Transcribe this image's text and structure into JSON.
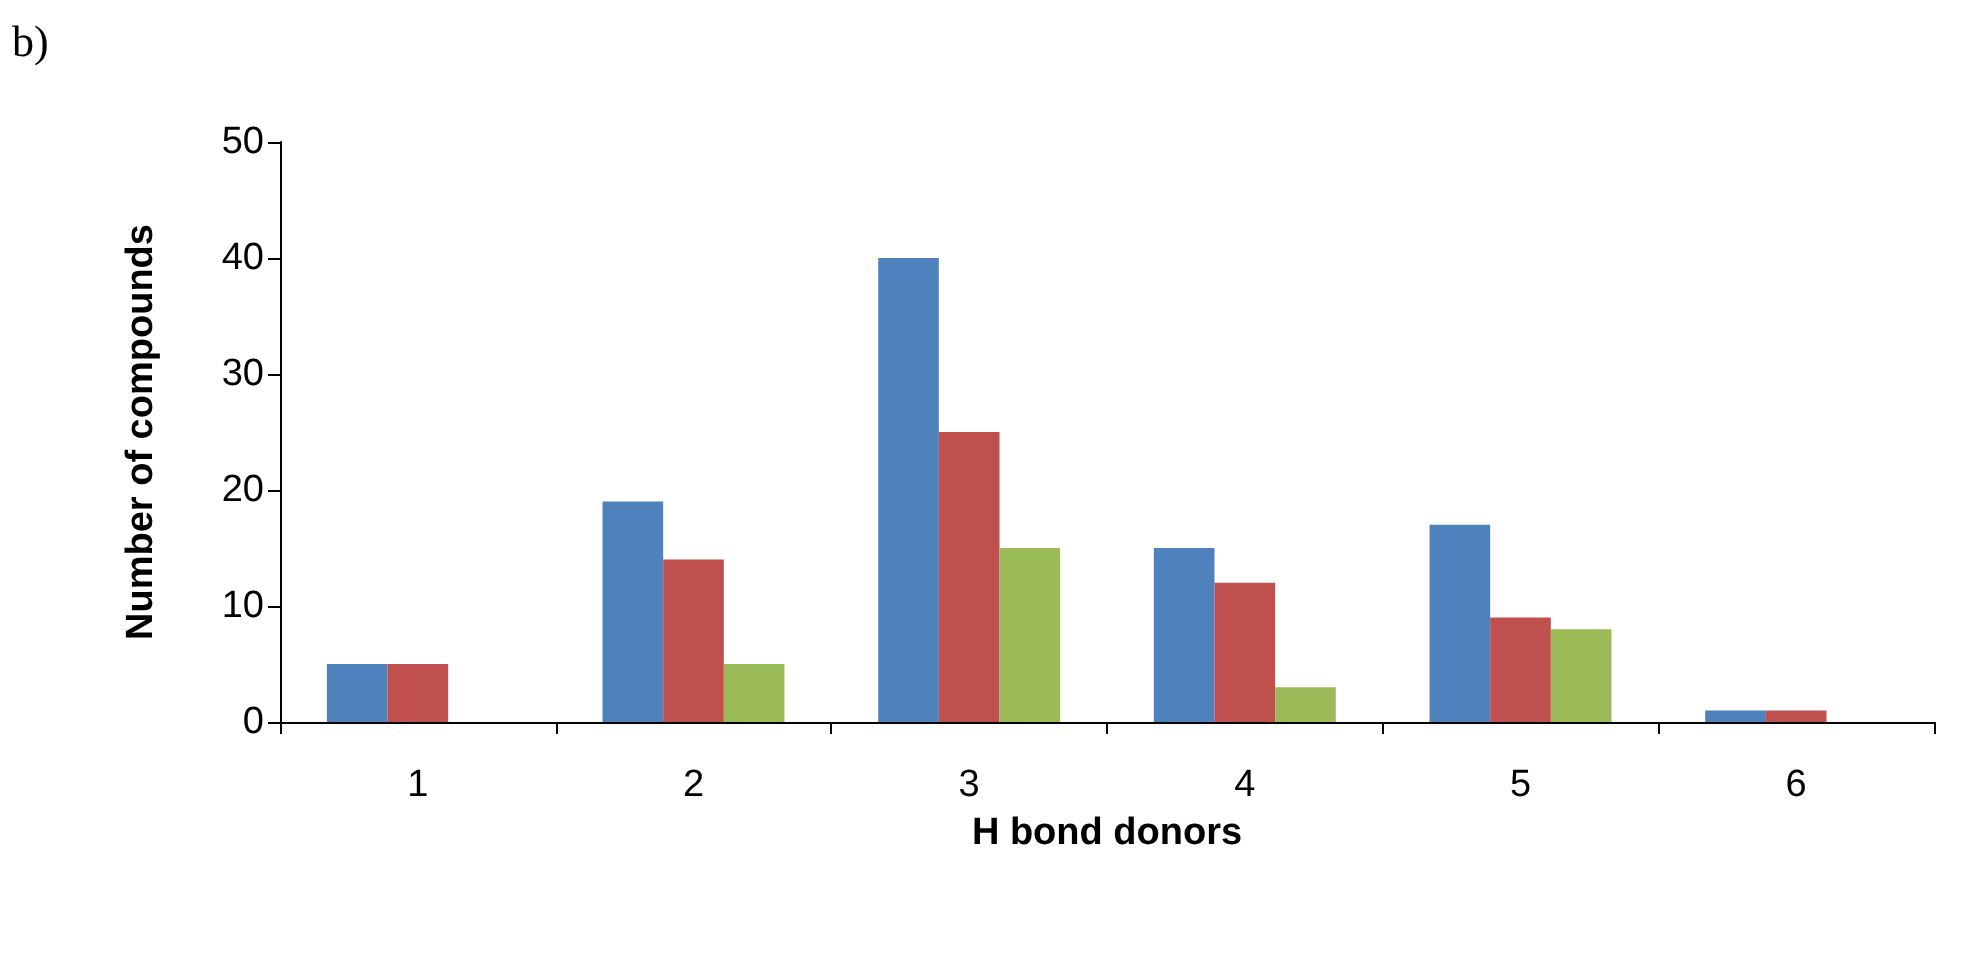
{
  "chart_data": {
    "type": "bar",
    "xlabel": "H bond donors",
    "ylabel": "Number of compounds",
    "annotations": [
      "b)"
    ],
    "categories": [
      "1",
      "2",
      "3",
      "4",
      "5",
      "6"
    ],
    "series": [
      {
        "color": "#4f81bd",
        "values": [
          5,
          19,
          40,
          15,
          17,
          1
        ]
      },
      {
        "color": "#c0504d",
        "values": [
          5,
          14,
          25,
          12,
          9,
          1
        ]
      },
      {
        "color": "#9bbb59",
        "values": [
          0,
          5,
          15,
          3,
          8,
          0
        ]
      }
    ],
    "ylim": [
      0,
      50
    ],
    "yticks": [
      0,
      10,
      20,
      30,
      40,
      50
    ]
  }
}
